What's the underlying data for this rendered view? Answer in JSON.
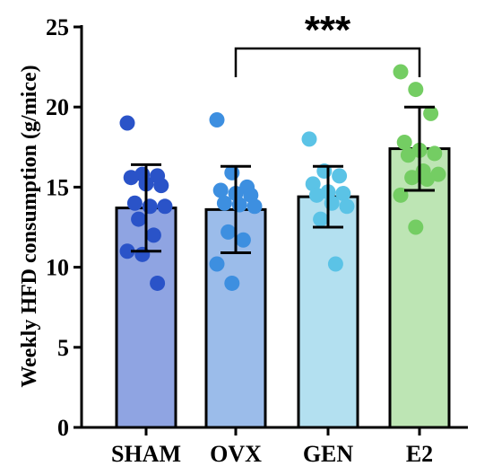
{
  "chart_data": {
    "type": "bar",
    "title": "",
    "xlabel": "",
    "ylabel": "Weekly HFD consumption (g/mice)",
    "ylim": [
      0,
      25
    ],
    "yticks": [
      0,
      5,
      10,
      15,
      20,
      25
    ],
    "grid": false,
    "categories": [
      "SHAM",
      "OVX",
      "GEN",
      "E2"
    ],
    "values": [
      13.7,
      13.6,
      14.4,
      17.4
    ],
    "error": [
      2.7,
      2.7,
      1.9,
      2.6
    ],
    "bar_colors": [
      "#8fa4e2",
      "#9bbcea",
      "#b3e0f0",
      "#bde5b4"
    ],
    "point_colors": [
      "#2a53c8",
      "#3d8fe0",
      "#5bc3e6",
      "#74cd63"
    ],
    "points": [
      [
        19.0,
        15.8,
        15.7,
        15.6,
        15.2,
        15.1,
        14.0,
        13.8,
        13.8,
        13.0,
        12.0,
        11.0,
        10.8,
        9.0
      ],
      [
        19.2,
        15.9,
        15.0,
        14.8,
        14.6,
        14.5,
        14.0,
        13.9,
        13.8,
        12.2,
        11.7,
        10.2,
        9.0
      ],
      [
        18.0,
        16.0,
        15.7,
        15.2,
        14.7,
        14.6,
        14.5,
        14.0,
        13.8,
        13.0,
        10.2
      ],
      [
        22.2,
        21.1,
        19.6,
        17.8,
        17.3,
        17.1,
        17.0,
        16.0,
        15.8,
        15.6,
        15.5,
        14.5,
        12.5
      ]
    ],
    "significance": {
      "from": "OVX",
      "to": "E2",
      "label": "***"
    }
  }
}
